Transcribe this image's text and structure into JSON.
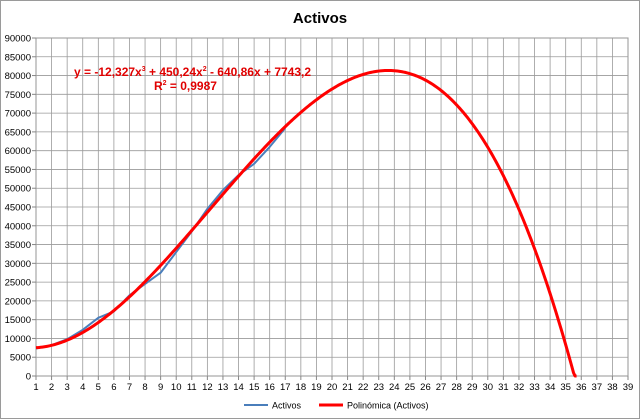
{
  "chart_data": {
    "type": "line",
    "title": "Activos",
    "xlabel": "",
    "ylabel": "",
    "xlim": [
      1,
      39
    ],
    "ylim": [
      0,
      90000
    ],
    "x_ticks": [
      1,
      2,
      3,
      4,
      5,
      6,
      7,
      8,
      9,
      10,
      11,
      12,
      13,
      14,
      15,
      16,
      17,
      18,
      19,
      20,
      21,
      22,
      23,
      24,
      25,
      26,
      27,
      28,
      29,
      30,
      31,
      32,
      33,
      34,
      35,
      36,
      37,
      38,
      39
    ],
    "y_ticks": [
      0,
      5000,
      10000,
      15000,
      20000,
      25000,
      30000,
      35000,
      40000,
      45000,
      50000,
      55000,
      60000,
      65000,
      70000,
      75000,
      80000,
      85000,
      90000
    ],
    "grid": true,
    "legend_position": "bottom",
    "series": [
      {
        "name": "Activos",
        "color": "#4a7ebb",
        "x": [
          1,
          2,
          3,
          4,
          5,
          6,
          7,
          8,
          9,
          10,
          11,
          12,
          13,
          14,
          15,
          16,
          17
        ],
        "values": [
          7300,
          8200,
          9800,
          12300,
          15500,
          17200,
          21500,
          24500,
          27500,
          33000,
          38500,
          44500,
          49500,
          53500,
          56500,
          61000,
          66000
        ]
      },
      {
        "name": "Polinómica (Activos)",
        "color": "#ff0000",
        "type": "polynomial",
        "coefficients": [
          -12.327,
          450.24,
          -640.86,
          7743.2
        ],
        "x_range": [
          1,
          35.7
        ]
      }
    ],
    "annotations": {
      "equation": {
        "prefix": "y = -12,327x",
        "exp1": "3",
        "mid": " + 450,24x",
        "exp2": "2",
        "suffix": " - 640,86x + 7743,2"
      },
      "r_squared": {
        "prefix": "R",
        "exp": "2",
        "suffix": " = 0,9987"
      }
    }
  }
}
